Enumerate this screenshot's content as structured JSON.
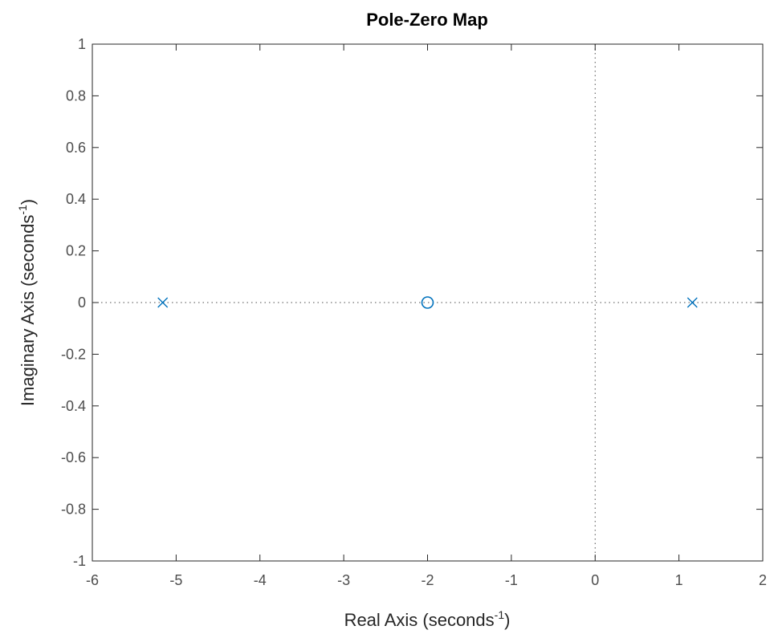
{
  "chart_data": {
    "type": "scatter",
    "title": "Pole-Zero Map",
    "xlabel": "Real Axis (seconds",
    "ylabel": "Imaginary Axis (seconds",
    "axis_unit_exponent": "-1",
    "axis_label_close": ")",
    "xlim": [
      -6,
      2
    ],
    "ylim": [
      -1,
      1
    ],
    "xticks": [
      -6,
      -5,
      -4,
      -3,
      -2,
      -1,
      0,
      1,
      2
    ],
    "xtick_labels": [
      "-6",
      "-5",
      "-4",
      "-3",
      "-2",
      "-1",
      "0",
      "1",
      "2"
    ],
    "yticks": [
      -1,
      -0.8,
      -0.6,
      -0.4,
      -0.2,
      0,
      0.2,
      0.4,
      0.6,
      0.8,
      1
    ],
    "ytick_labels": [
      "-1",
      "-0.8",
      "-0.6",
      "-0.4",
      "-0.2",
      "0",
      "0.2",
      "0.4",
      "0.6",
      "0.8",
      "1"
    ],
    "grid": false,
    "reference_lines": {
      "x": 0,
      "y": 0,
      "style": "dotted"
    },
    "series": [
      {
        "marker": "x",
        "points": [
          {
            "x": -5.16,
            "y": 0
          },
          {
            "x": 1.16,
            "y": 0
          }
        ]
      },
      {
        "marker": "o",
        "points": [
          {
            "x": -2.0,
            "y": 0
          }
        ]
      }
    ],
    "colors": {
      "marker": "#0072bd",
      "axis": "#262626",
      "tick_label": "#4d4d4d",
      "reference_line": "#4d4d4d"
    }
  }
}
